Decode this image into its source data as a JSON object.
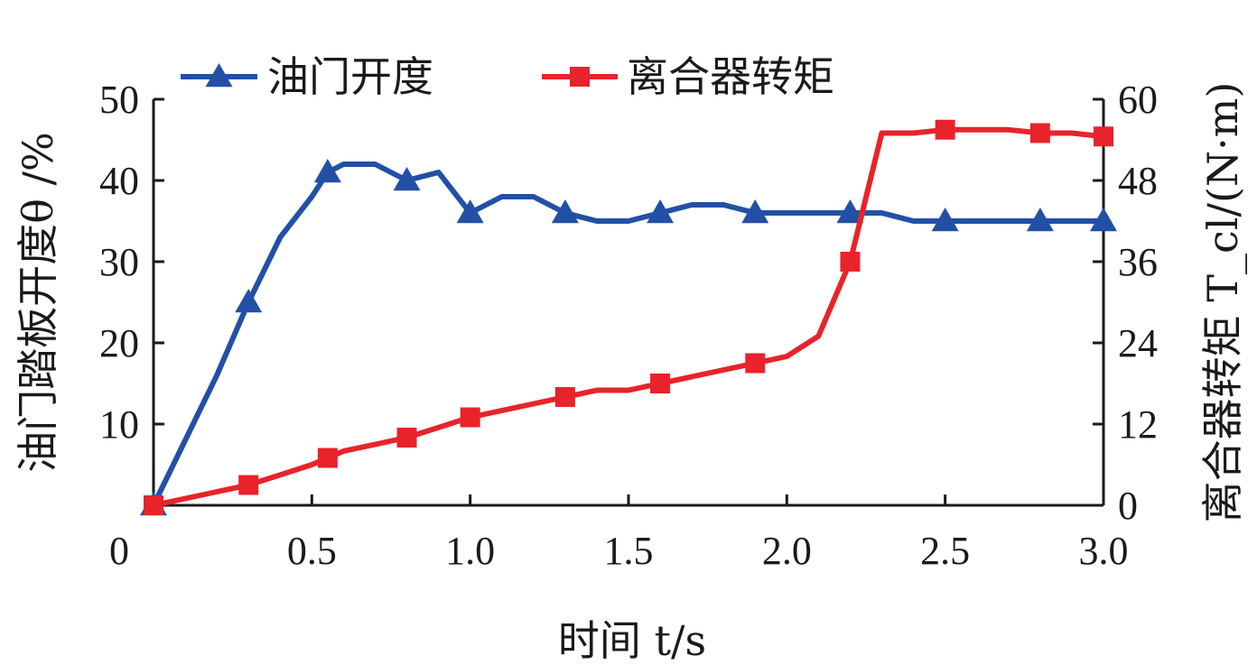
{
  "chart_data": {
    "type": "line",
    "title": "",
    "xlabel": "时间 t/s",
    "ylabel_left": "油门踏板开度θ /%",
    "ylabel_right": "离合器转矩 T_cl/(N·m)",
    "xlim": [
      0,
      3.0
    ],
    "ylim_left": [
      0,
      50
    ],
    "ylim_right": [
      0,
      60
    ],
    "x_ticks": [
      "0",
      "0.5",
      "1.0",
      "1.5",
      "2.0",
      "2.5",
      "3.0"
    ],
    "y_left_ticks": [
      "10",
      "20",
      "30",
      "40",
      "50"
    ],
    "y_right_ticks": [
      "0",
      "12",
      "24",
      "36",
      "48",
      "60"
    ],
    "legend_position": "top",
    "grid": false,
    "series": [
      {
        "name": "油门开度",
        "axis": "left",
        "color": "#2250a5",
        "marker": "triangle",
        "x": [
          0.0,
          0.1,
          0.2,
          0.3,
          0.4,
          0.5,
          0.55,
          0.6,
          0.7,
          0.8,
          0.9,
          1.0,
          1.1,
          1.2,
          1.3,
          1.4,
          1.5,
          1.6,
          1.7,
          1.8,
          1.9,
          2.0,
          2.1,
          2.2,
          2.3,
          2.4,
          2.5,
          2.6,
          2.7,
          2.8,
          2.9,
          3.0
        ],
        "y": [
          0,
          8,
          16,
          25,
          33,
          38,
          41,
          42,
          42,
          40,
          41,
          36,
          38,
          38,
          36,
          35,
          35,
          36,
          37,
          37,
          36,
          36,
          36,
          36,
          36,
          35,
          35,
          35,
          35,
          35,
          35,
          35
        ],
        "marker_idx": [
          0,
          3,
          6,
          9,
          11,
          14,
          17,
          20,
          23,
          26,
          29,
          31
        ]
      },
      {
        "name": "离合器转矩",
        "axis": "right",
        "color": "#e8232b",
        "marker": "square",
        "x": [
          0.0,
          0.1,
          0.2,
          0.3,
          0.4,
          0.5,
          0.55,
          0.6,
          0.7,
          0.8,
          0.9,
          1.0,
          1.1,
          1.2,
          1.3,
          1.4,
          1.5,
          1.6,
          1.7,
          1.8,
          1.9,
          2.0,
          2.1,
          2.2,
          2.3,
          2.4,
          2.5,
          2.6,
          2.7,
          2.8,
          2.9,
          3.0
        ],
        "y": [
          0,
          1,
          2,
          3,
          4.5,
          6,
          7,
          8,
          9,
          10,
          11.5,
          13,
          14,
          15,
          16,
          17,
          17,
          18,
          19,
          20,
          21,
          22,
          25,
          36,
          55,
          55,
          55.5,
          55.5,
          55.5,
          55,
          55,
          54.5
        ],
        "marker_idx": [
          0,
          3,
          6,
          9,
          11,
          14,
          17,
          20,
          23,
          26,
          29,
          31
        ]
      }
    ]
  },
  "colors": {
    "axis": "#1a1a1a",
    "throttle": "#2250a5",
    "clutch": "#e8232b"
  }
}
